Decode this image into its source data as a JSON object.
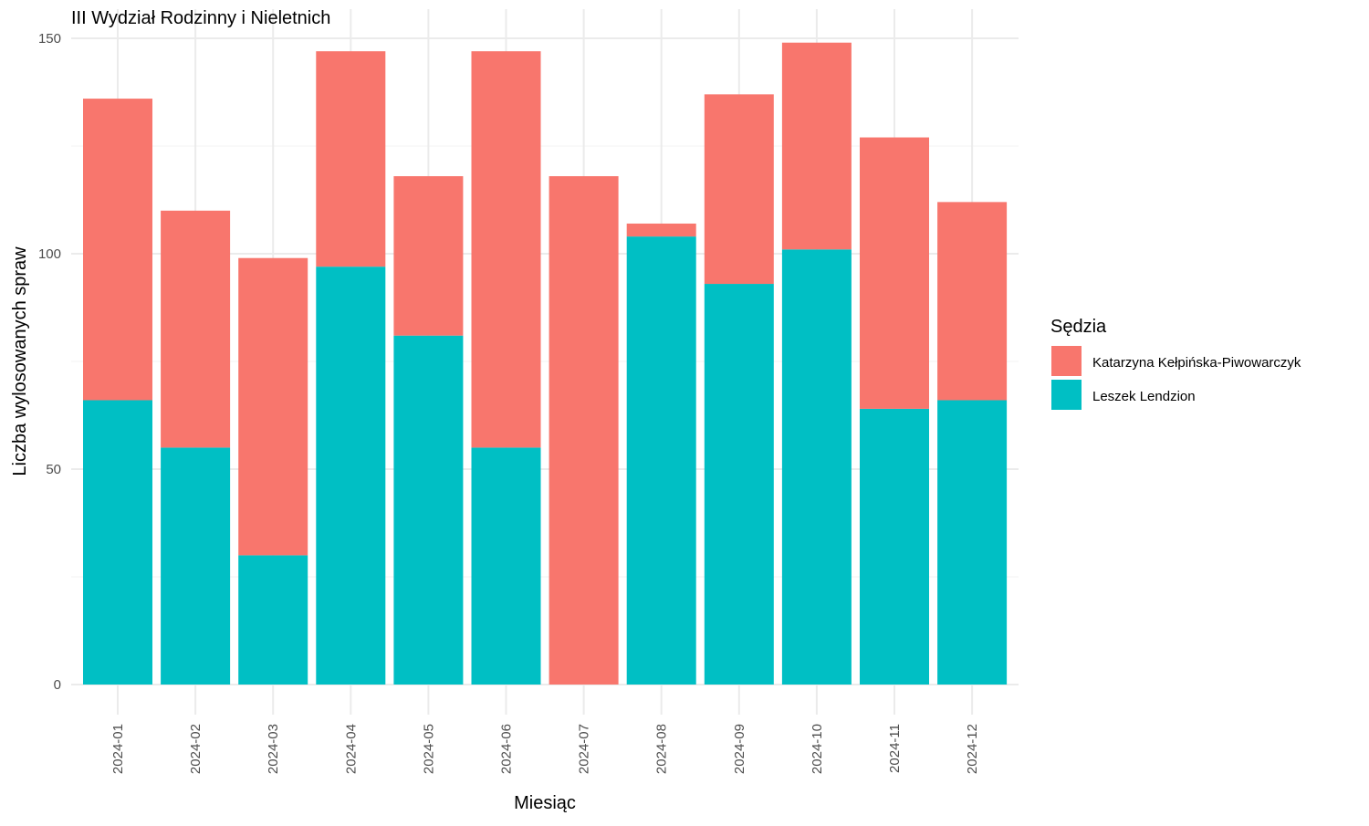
{
  "chart_data": {
    "type": "bar",
    "stacked": true,
    "title": "III Wydział Rodzinny i Nieletnich",
    "xlabel": "Miesiąc",
    "ylabel": "Liczba wylosowanych spraw",
    "ylim": [
      0,
      150
    ],
    "yticks": [
      0,
      50,
      100,
      150
    ],
    "grid": true,
    "legend_position": "right",
    "legend_title": "Sędzia",
    "categories": [
      "2024-01",
      "2024-02",
      "2024-03",
      "2024-04",
      "2024-05",
      "2024-06",
      "2024-07",
      "2024-08",
      "2024-09",
      "2024-10",
      "2024-11",
      "2024-12"
    ],
    "series": [
      {
        "name": "Katarzyna Kełpińska-Piwowarczyk",
        "color": "#F8766D",
        "values": [
          70,
          55,
          69,
          50,
          37,
          92,
          118,
          3,
          44,
          48,
          63,
          46
        ]
      },
      {
        "name": "Leszek Lendzion",
        "color": "#00BFC4",
        "values": [
          66,
          55,
          30,
          97,
          81,
          55,
          0,
          104,
          93,
          101,
          64,
          66
        ]
      }
    ]
  }
}
